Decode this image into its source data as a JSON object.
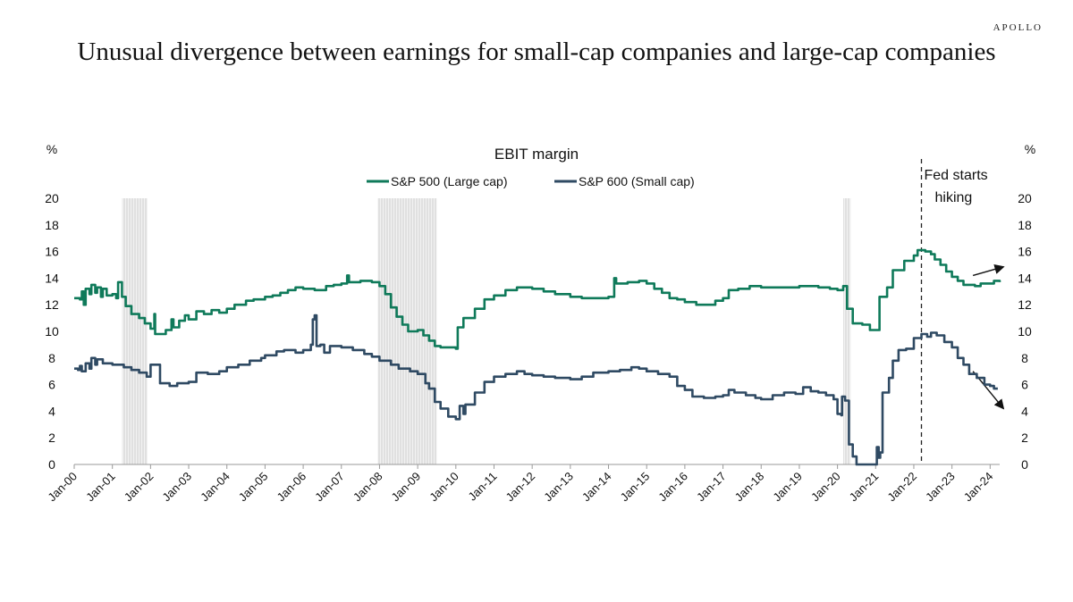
{
  "header": {
    "brand": "APOLLO",
    "title": "Unusual divergence between earnings for small-cap companies and large-cap companies"
  },
  "chart_data": {
    "type": "line",
    "title": "EBIT margin",
    "left_unit": "%",
    "right_unit": "%",
    "ylim": [
      0,
      20
    ],
    "yticks": [
      0,
      2,
      4,
      6,
      8,
      10,
      12,
      14,
      16,
      18,
      20
    ],
    "xlim": [
      2000,
      2024.25
    ],
    "xticks": [
      {
        "label": "Jan-00",
        "x": 2000
      },
      {
        "label": "Jan-01",
        "x": 2001
      },
      {
        "label": "Jan-02",
        "x": 2002
      },
      {
        "label": "Jan-03",
        "x": 2003
      },
      {
        "label": "Jan-04",
        "x": 2004
      },
      {
        "label": "Jan-05",
        "x": 2005
      },
      {
        "label": "Jan-06",
        "x": 2006
      },
      {
        "label": "Jan-07",
        "x": 2007
      },
      {
        "label": "Jan-08",
        "x": 2008
      },
      {
        "label": "Jan-09",
        "x": 2009
      },
      {
        "label": "Jan-10",
        "x": 2010
      },
      {
        "label": "Jan-11",
        "x": 2011
      },
      {
        "label": "Jan-12",
        "x": 2012
      },
      {
        "label": "Jan-13",
        "x": 2013
      },
      {
        "label": "Jan-14",
        "x": 2014
      },
      {
        "label": "Jan-15",
        "x": 2015
      },
      {
        "label": "Jan-16",
        "x": 2016
      },
      {
        "label": "Jan-17",
        "x": 2017
      },
      {
        "label": "Jan-18",
        "x": 2018
      },
      {
        "label": "Jan-19",
        "x": 2019
      },
      {
        "label": "Jan-20",
        "x": 2020
      },
      {
        "label": "Jan-21",
        "x": 2021
      },
      {
        "label": "Jan-22",
        "x": 2022
      },
      {
        "label": "Jan-23",
        "x": 2023
      },
      {
        "label": "Jan-24",
        "x": 2024
      }
    ],
    "recessions": [
      [
        2001.25,
        2001.92
      ],
      [
        2007.95,
        2009.5
      ],
      [
        2020.15,
        2020.35
      ]
    ],
    "series": [
      {
        "name": "S&P 500 (Large cap)",
        "color": "#0f7a5a",
        "points": [
          [
            2000.0,
            12.5
          ],
          [
            2000.15,
            12.4
          ],
          [
            2000.2,
            13.0
          ],
          [
            2000.25,
            12.0
          ],
          [
            2000.3,
            13.2
          ],
          [
            2000.4,
            12.8
          ],
          [
            2000.45,
            13.5
          ],
          [
            2000.55,
            12.9
          ],
          [
            2000.6,
            13.3
          ],
          [
            2000.7,
            12.6
          ],
          [
            2000.75,
            13.2
          ],
          [
            2000.85,
            12.7
          ],
          [
            2001.0,
            12.8
          ],
          [
            2001.1,
            12.5
          ],
          [
            2001.15,
            13.7
          ],
          [
            2001.25,
            12.6
          ],
          [
            2001.35,
            11.9
          ],
          [
            2001.5,
            11.3
          ],
          [
            2001.7,
            11.0
          ],
          [
            2001.85,
            10.6
          ],
          [
            2002.0,
            10.2
          ],
          [
            2002.1,
            11.3
          ],
          [
            2002.12,
            9.8
          ],
          [
            2002.4,
            10.1
          ],
          [
            2002.55,
            10.9
          ],
          [
            2002.6,
            10.3
          ],
          [
            2002.75,
            10.8
          ],
          [
            2002.9,
            11.2
          ],
          [
            2003.0,
            10.9
          ],
          [
            2003.2,
            11.5
          ],
          [
            2003.4,
            11.3
          ],
          [
            2003.6,
            11.6
          ],
          [
            2003.8,
            11.4
          ],
          [
            2004.0,
            11.7
          ],
          [
            2004.2,
            12.0
          ],
          [
            2004.5,
            12.3
          ],
          [
            2004.7,
            12.4
          ],
          [
            2005.0,
            12.6
          ],
          [
            2005.2,
            12.7
          ],
          [
            2005.4,
            12.9
          ],
          [
            2005.6,
            13.1
          ],
          [
            2005.8,
            13.3
          ],
          [
            2006.0,
            13.2
          ],
          [
            2006.3,
            13.1
          ],
          [
            2006.6,
            13.4
          ],
          [
            2006.8,
            13.5
          ],
          [
            2007.0,
            13.6
          ],
          [
            2007.15,
            14.2
          ],
          [
            2007.2,
            13.7
          ],
          [
            2007.5,
            13.8
          ],
          [
            2007.8,
            13.7
          ],
          [
            2008.0,
            13.4
          ],
          [
            2008.15,
            12.8
          ],
          [
            2008.3,
            11.8
          ],
          [
            2008.45,
            11.1
          ],
          [
            2008.6,
            10.5
          ],
          [
            2008.75,
            10.0
          ],
          [
            2009.0,
            10.1
          ],
          [
            2009.15,
            9.7
          ],
          [
            2009.3,
            9.3
          ],
          [
            2009.45,
            8.9
          ],
          [
            2009.6,
            8.8
          ],
          [
            2010.0,
            8.7
          ],
          [
            2010.05,
            10.3
          ],
          [
            2010.2,
            11.0
          ],
          [
            2010.5,
            11.7
          ],
          [
            2010.75,
            12.4
          ],
          [
            2011.0,
            12.7
          ],
          [
            2011.3,
            13.1
          ],
          [
            2011.6,
            13.3
          ],
          [
            2012.0,
            13.2
          ],
          [
            2012.3,
            13.0
          ],
          [
            2012.6,
            12.8
          ],
          [
            2013.0,
            12.6
          ],
          [
            2013.3,
            12.5
          ],
          [
            2013.6,
            12.5
          ],
          [
            2014.0,
            12.6
          ],
          [
            2014.15,
            14.0
          ],
          [
            2014.2,
            13.6
          ],
          [
            2014.5,
            13.7
          ],
          [
            2014.8,
            13.8
          ],
          [
            2015.0,
            13.6
          ],
          [
            2015.2,
            13.2
          ],
          [
            2015.4,
            12.9
          ],
          [
            2015.6,
            12.5
          ],
          [
            2015.8,
            12.4
          ],
          [
            2016.0,
            12.2
          ],
          [
            2016.3,
            12.0
          ],
          [
            2016.6,
            12.0
          ],
          [
            2016.8,
            12.3
          ],
          [
            2017.0,
            12.5
          ],
          [
            2017.15,
            13.1
          ],
          [
            2017.4,
            13.2
          ],
          [
            2017.7,
            13.4
          ],
          [
            2018.0,
            13.3
          ],
          [
            2018.5,
            13.3
          ],
          [
            2019.0,
            13.4
          ],
          [
            2019.5,
            13.3
          ],
          [
            2019.8,
            13.2
          ],
          [
            2020.0,
            13.1
          ],
          [
            2020.15,
            13.4
          ],
          [
            2020.25,
            11.7
          ],
          [
            2020.4,
            10.6
          ],
          [
            2020.65,
            10.5
          ],
          [
            2020.85,
            10.1
          ],
          [
            2021.0,
            10.1
          ],
          [
            2021.1,
            12.6
          ],
          [
            2021.3,
            13.3
          ],
          [
            2021.45,
            14.6
          ],
          [
            2021.6,
            14.6
          ],
          [
            2021.75,
            15.3
          ],
          [
            2022.0,
            15.7
          ],
          [
            2022.1,
            16.1
          ],
          [
            2022.3,
            16.0
          ],
          [
            2022.45,
            15.8
          ],
          [
            2022.55,
            15.4
          ],
          [
            2022.7,
            15.0
          ],
          [
            2022.85,
            14.5
          ],
          [
            2023.0,
            14.1
          ],
          [
            2023.15,
            13.8
          ],
          [
            2023.3,
            13.5
          ],
          [
            2023.45,
            13.5
          ],
          [
            2023.6,
            13.4
          ],
          [
            2023.75,
            13.6
          ],
          [
            2024.0,
            13.6
          ],
          [
            2024.1,
            13.8
          ],
          [
            2024.25,
            13.7
          ]
        ]
      },
      {
        "name": "S&P 600 (Small cap)",
        "color": "#2f4a63",
        "points": [
          [
            2000.0,
            7.2
          ],
          [
            2000.1,
            7.1
          ],
          [
            2000.15,
            7.4
          ],
          [
            2000.2,
            7.0
          ],
          [
            2000.3,
            7.6
          ],
          [
            2000.4,
            7.2
          ],
          [
            2000.45,
            8.0
          ],
          [
            2000.55,
            7.5
          ],
          [
            2000.6,
            7.9
          ],
          [
            2000.75,
            7.6
          ],
          [
            2001.0,
            7.5
          ],
          [
            2001.3,
            7.3
          ],
          [
            2001.5,
            7.1
          ],
          [
            2001.7,
            6.9
          ],
          [
            2001.9,
            6.6
          ],
          [
            2002.0,
            7.5
          ],
          [
            2002.2,
            7.5
          ],
          [
            2002.25,
            6.1
          ],
          [
            2002.5,
            5.9
          ],
          [
            2002.7,
            6.1
          ],
          [
            2003.0,
            6.2
          ],
          [
            2003.2,
            6.9
          ],
          [
            2003.5,
            6.8
          ],
          [
            2003.8,
            7.0
          ],
          [
            2004.0,
            7.3
          ],
          [
            2004.3,
            7.5
          ],
          [
            2004.6,
            7.8
          ],
          [
            2004.9,
            8.0
          ],
          [
            2005.0,
            8.2
          ],
          [
            2005.3,
            8.5
          ],
          [
            2005.5,
            8.6
          ],
          [
            2005.8,
            8.4
          ],
          [
            2006.0,
            8.6
          ],
          [
            2006.2,
            9.0
          ],
          [
            2006.25,
            10.9
          ],
          [
            2006.3,
            11.2
          ],
          [
            2006.35,
            8.9
          ],
          [
            2006.45,
            9.0
          ],
          [
            2006.55,
            8.4
          ],
          [
            2006.7,
            8.9
          ],
          [
            2007.0,
            8.8
          ],
          [
            2007.3,
            8.6
          ],
          [
            2007.6,
            8.3
          ],
          [
            2007.8,
            8.1
          ],
          [
            2008.0,
            7.8
          ],
          [
            2008.3,
            7.5
          ],
          [
            2008.5,
            7.2
          ],
          [
            2008.8,
            7.0
          ],
          [
            2009.0,
            6.8
          ],
          [
            2009.2,
            6.1
          ],
          [
            2009.3,
            5.7
          ],
          [
            2009.45,
            4.7
          ],
          [
            2009.6,
            4.2
          ],
          [
            2009.8,
            3.6
          ],
          [
            2010.0,
            3.4
          ],
          [
            2010.1,
            4.4
          ],
          [
            2010.2,
            3.8
          ],
          [
            2010.25,
            4.5
          ],
          [
            2010.5,
            5.4
          ],
          [
            2010.75,
            6.2
          ],
          [
            2011.0,
            6.6
          ],
          [
            2011.3,
            6.8
          ],
          [
            2011.6,
            7.0
          ],
          [
            2011.8,
            6.8
          ],
          [
            2012.0,
            6.7
          ],
          [
            2012.3,
            6.6
          ],
          [
            2012.6,
            6.5
          ],
          [
            2013.0,
            6.4
          ],
          [
            2013.3,
            6.6
          ],
          [
            2013.6,
            6.9
          ],
          [
            2014.0,
            7.0
          ],
          [
            2014.3,
            7.1
          ],
          [
            2014.6,
            7.3
          ],
          [
            2014.8,
            7.2
          ],
          [
            2015.0,
            7.0
          ],
          [
            2015.3,
            6.8
          ],
          [
            2015.6,
            6.6
          ],
          [
            2015.8,
            5.9
          ],
          [
            2016.0,
            5.6
          ],
          [
            2016.2,
            5.1
          ],
          [
            2016.5,
            5.0
          ],
          [
            2016.8,
            5.1
          ],
          [
            2017.0,
            5.2
          ],
          [
            2017.15,
            5.6
          ],
          [
            2017.3,
            5.4
          ],
          [
            2017.6,
            5.2
          ],
          [
            2017.85,
            5.0
          ],
          [
            2018.0,
            4.9
          ],
          [
            2018.3,
            5.2
          ],
          [
            2018.6,
            5.4
          ],
          [
            2018.9,
            5.3
          ],
          [
            2019.1,
            5.8
          ],
          [
            2019.3,
            5.5
          ],
          [
            2019.5,
            5.4
          ],
          [
            2019.7,
            5.2
          ],
          [
            2019.9,
            4.9
          ],
          [
            2020.0,
            3.8
          ],
          [
            2020.1,
            3.7
          ],
          [
            2020.12,
            5.1
          ],
          [
            2020.2,
            4.8
          ],
          [
            2020.3,
            1.5
          ],
          [
            2020.4,
            0.6
          ],
          [
            2020.5,
            0.0
          ],
          [
            2021.0,
            0.0
          ],
          [
            2021.03,
            1.3
          ],
          [
            2021.08,
            0.5
          ],
          [
            2021.12,
            0.9
          ],
          [
            2021.18,
            5.4
          ],
          [
            2021.35,
            6.5
          ],
          [
            2021.45,
            7.8
          ],
          [
            2021.6,
            8.6
          ],
          [
            2021.8,
            8.7
          ],
          [
            2022.0,
            9.5
          ],
          [
            2022.2,
            9.8
          ],
          [
            2022.35,
            9.6
          ],
          [
            2022.45,
            9.9
          ],
          [
            2022.6,
            9.7
          ],
          [
            2022.8,
            9.2
          ],
          [
            2023.0,
            8.8
          ],
          [
            2023.15,
            8.0
          ],
          [
            2023.3,
            7.5
          ],
          [
            2023.45,
            6.8
          ],
          [
            2023.65,
            6.5
          ],
          [
            2023.85,
            6.0
          ],
          [
            2024.0,
            5.9
          ],
          [
            2024.1,
            5.7
          ],
          [
            2024.2,
            5.7
          ]
        ]
      }
    ],
    "annotations": [
      {
        "text": "Fed starts",
        "text2": "hiking",
        "x": 2022.2
      }
    ],
    "trend_arrows": [
      {
        "series": "S&P 500 (Large cap)",
        "from": [
          2023.55,
          14.2
        ],
        "to": [
          2024.35,
          14.85
        ]
      },
      {
        "series": "S&P 600 (Small cap)",
        "from": [
          2023.55,
          7.0
        ],
        "to": [
          2024.35,
          4.2
        ]
      }
    ],
    "legend_position": "top-center",
    "grid": false
  }
}
